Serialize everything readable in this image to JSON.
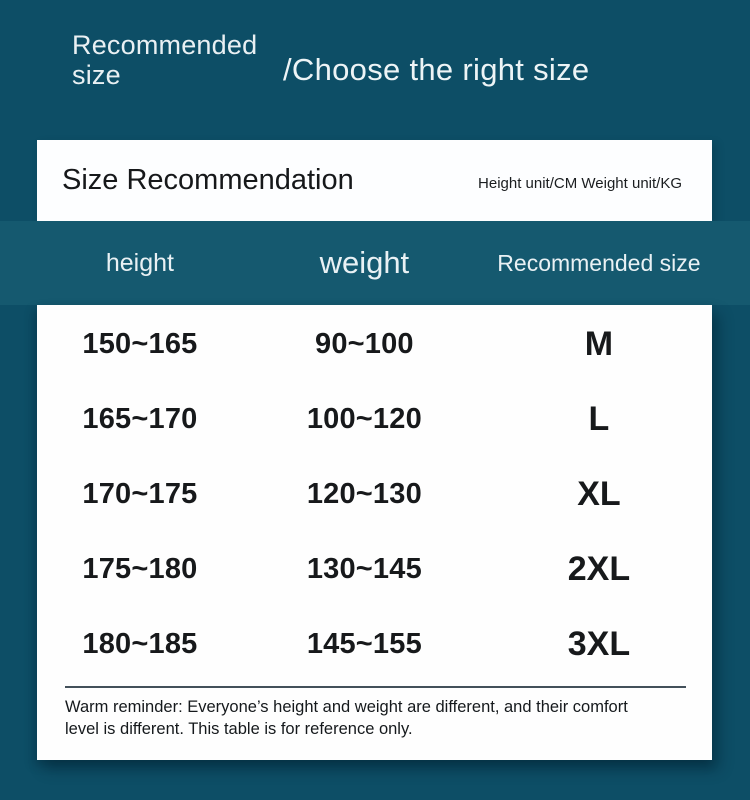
{
  "hero": {
    "title": "Recommended\nsize",
    "subtitle": "/Choose the right size"
  },
  "banner": {
    "title": "Size Recommendation",
    "units_note": "Height unit/CM Weight unit/KG"
  },
  "chart_data": {
    "type": "table",
    "title": "Size Recommendation",
    "units_note": "Height unit/CM Weight unit/KG",
    "columns": [
      "height",
      "weight",
      "Recommended size"
    ],
    "rows": [
      [
        "150~165",
        "90~100",
        "M"
      ],
      [
        "165~170",
        "100~120",
        "L"
      ],
      [
        "170~175",
        "120~130",
        "XL"
      ],
      [
        "175~180",
        "130~145",
        "2XL"
      ],
      [
        "180~185",
        "145~155",
        "3XL"
      ]
    ]
  },
  "footer": {
    "note_line1": "Warm reminder: Everyone’s height and weight are different, and their comfort",
    "note_line2": "level is different. This table is for reference only."
  },
  "colors": {
    "background": "#0d4e66",
    "header_band": "#15596f",
    "card": "#fefefe",
    "text_dark": "#17191b",
    "text_light": "#e9f1f4"
  }
}
